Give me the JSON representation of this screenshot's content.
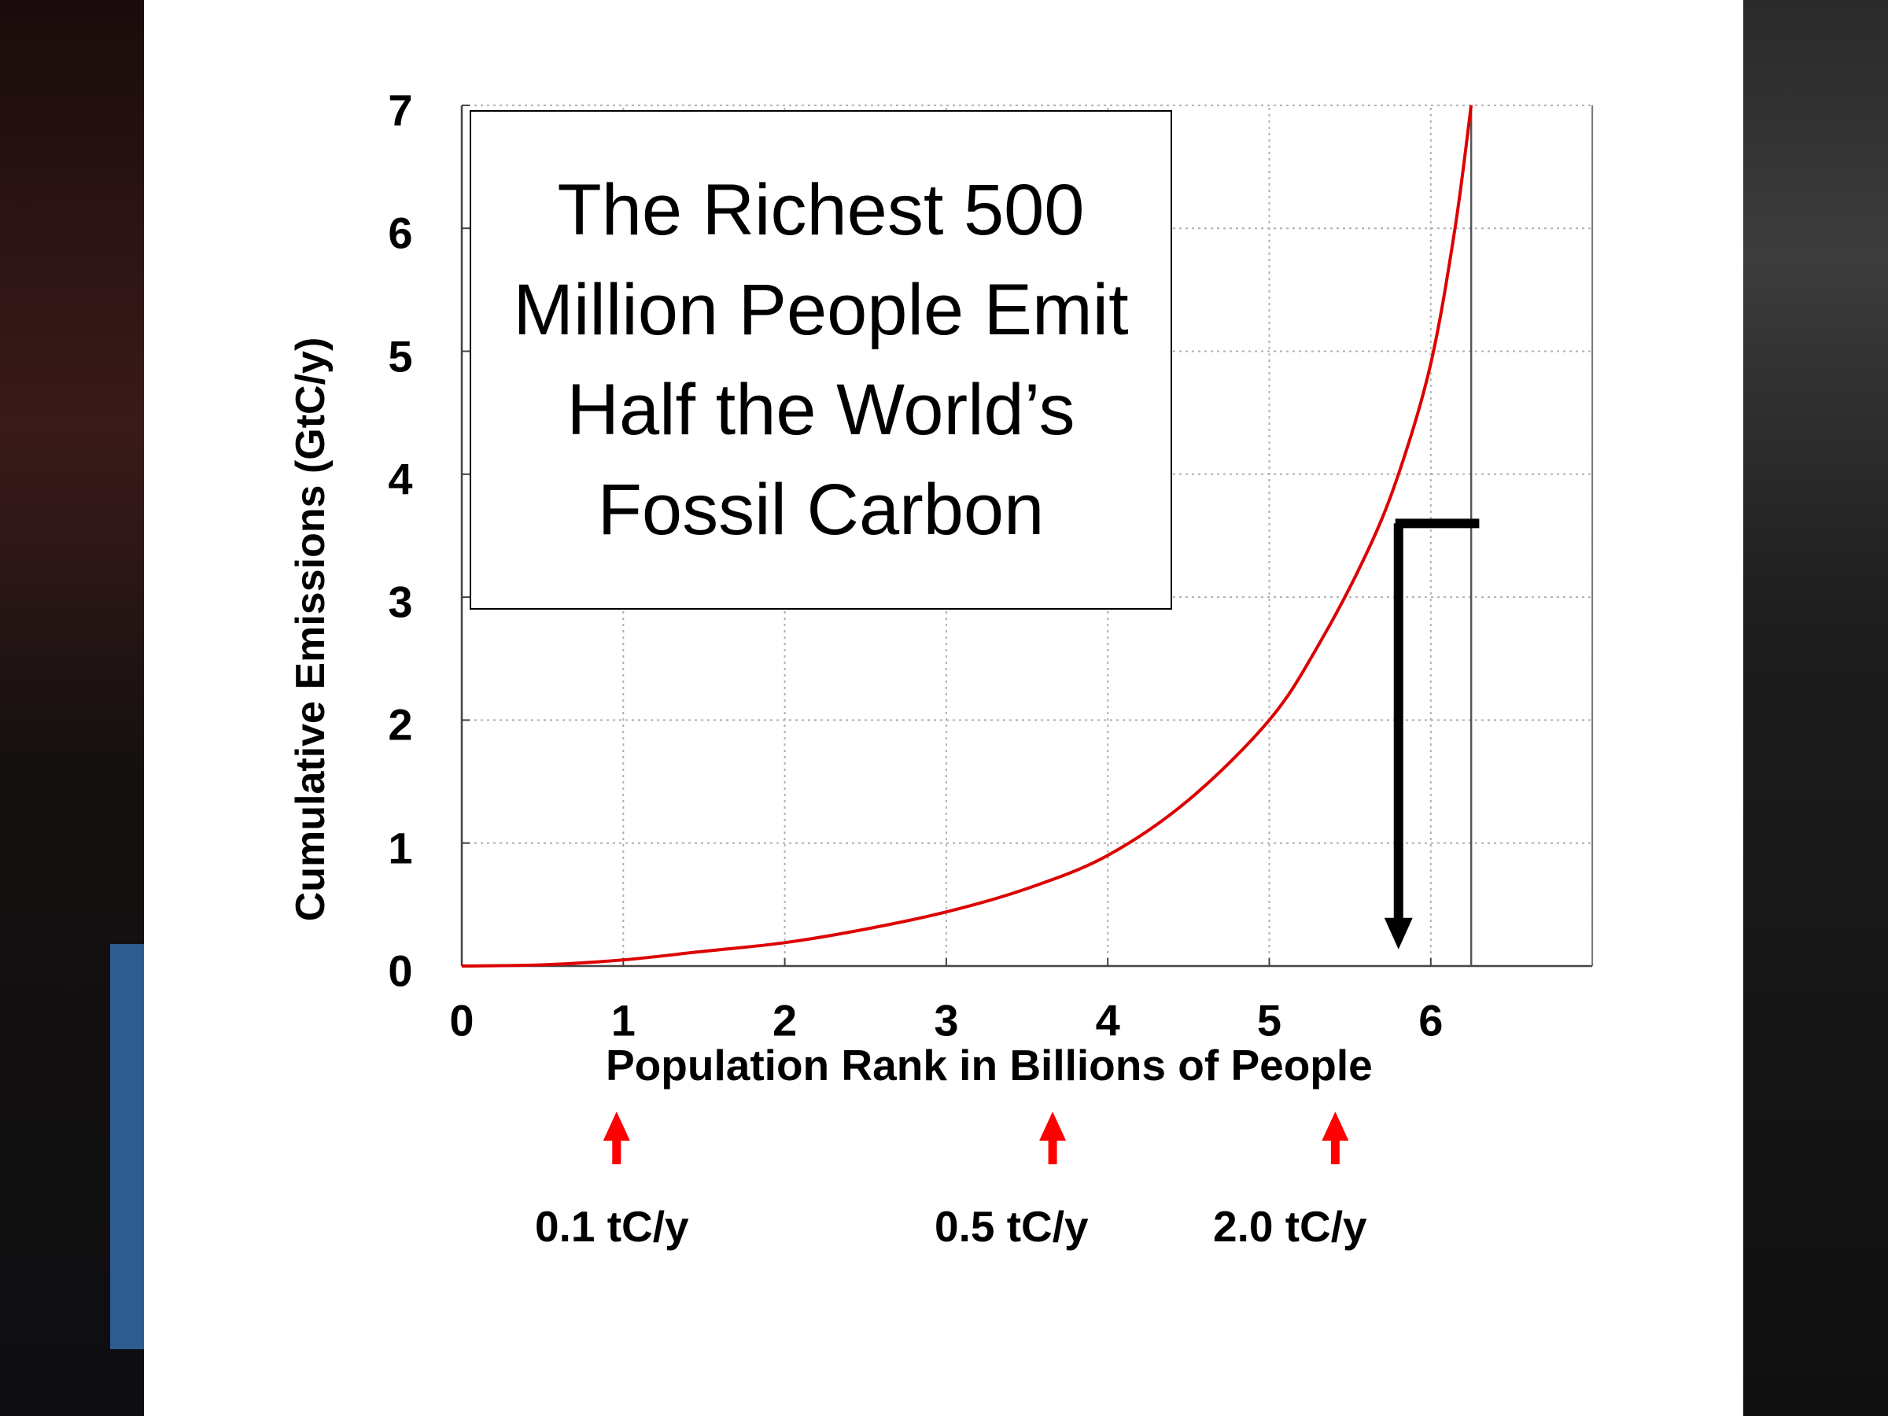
{
  "chart_data": {
    "type": "line",
    "title": "The Richest 500 Million People Emit Half the World’s Fossil Carbon",
    "xlabel": "Population Rank in Billions of People",
    "ylabel": "Cumulative Emissions (GtC/y)",
    "xlim": [
      0,
      7
    ],
    "ylim": [
      0,
      7
    ],
    "xticks": [
      "0",
      "1",
      "2",
      "3",
      "4",
      "5",
      "6"
    ],
    "yticks": [
      "0",
      "1",
      "2",
      "3",
      "4",
      "5",
      "6",
      "7"
    ],
    "grid": true,
    "series": [
      {
        "color": "#dd0000",
        "x": [
          0,
          0.5,
          1,
          1.5,
          2,
          2.5,
          3,
          3.5,
          4,
          4.5,
          5,
          5.3,
          5.6,
          5.8,
          6.0,
          6.15,
          6.25
        ],
        "y": [
          0,
          0.01,
          0.05,
          0.12,
          0.19,
          0.3,
          0.44,
          0.63,
          0.9,
          1.35,
          2.0,
          2.6,
          3.35,
          4.0,
          4.9,
          6.0,
          7.0
        ]
      }
    ],
    "vertical_line_x": 6.25,
    "bracket_arrow": {
      "from_y": 3.6,
      "x": 5.8,
      "to_y": 0.2,
      "color": "#000000"
    },
    "annotations": [
      {
        "text": "0.1 tC/y",
        "x": 0.9,
        "color": "#ff0000"
      },
      {
        "text": "0.5 tC/y",
        "x": 3.6,
        "color": "#ff0000"
      },
      {
        "text": "2.0 tC/y",
        "x": 5.35,
        "color": "#ff0000"
      }
    ]
  }
}
